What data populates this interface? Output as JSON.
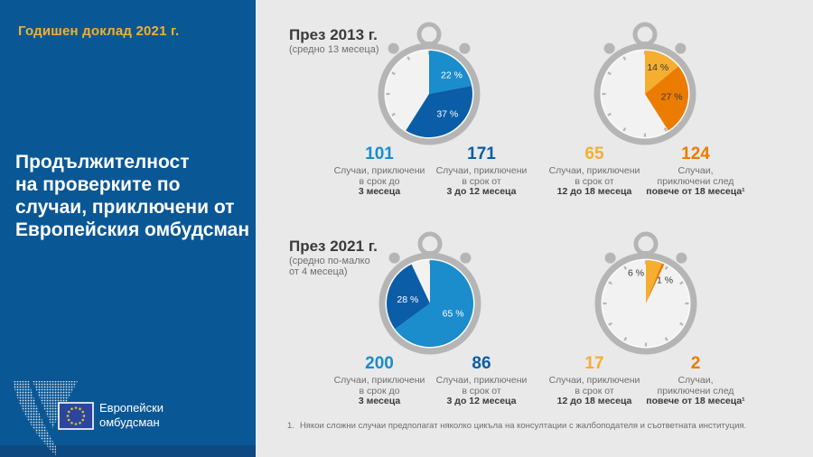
{
  "colors": {
    "sidebar_bg": "#0a5796",
    "sidebar_strip": "#0e4a81",
    "accent_yellow": "#f2b02e",
    "content_bg": "#e9e9e9",
    "light_blue": "#1b8ccc",
    "dark_blue": "#0b5da7",
    "amber": "#f5ae30",
    "dark_orange": "#ec7c00",
    "watch_gray": "#b5b5b5",
    "watch_face": "#f2f2f2",
    "watch_face_rim": "#fbfbfb",
    "text_dark": "#3a3a39",
    "text_gray": "#6e6e6d",
    "white": "#ffffff",
    "eu_blue": "#2b469e",
    "star_gold": "#e3c322"
  },
  "sidebar": {
    "report_title": "Годишен доклад 2021 г.",
    "title_lines": [
      "Продължителност",
      "на проверките по",
      "случаи, приключени от",
      "Европейския омбудсман"
    ],
    "logo_lines": [
      "Европейски",
      "омбудсман"
    ]
  },
  "chart_data": {
    "type": "pie",
    "title": "Продължителност на проверките по случаи, приключени от Европейския омбудсман",
    "unit": "%",
    "groups": [
      {
        "heading": "През 2013 г.",
        "subtitle_lines": [
          "(средно 13 месеца)"
        ],
        "watches": [
          {
            "slices": [
              {
                "percent": 22,
                "label": "22 %",
                "color": "light_blue",
                "label_color": "white",
                "label_angle": 50,
                "label_rf": 0.68,
                "count": "101",
                "count_color": "light_blue",
                "caption_lines": [
                  "Случаи, приключени",
                  "в срок до"
                ],
                "caption_bold": "3 месеца"
              },
              {
                "percent": 37,
                "label": "37 %",
                "color": "dark_blue",
                "label_color": "white",
                "label_angle": 137,
                "label_rf": 0.62,
                "count": "171",
                "count_color": "dark_blue",
                "caption_lines": [
                  "Случаи, приключени",
                  "в срок от"
                ],
                "caption_bold": "3 до 12 месеца"
              }
            ]
          },
          {
            "slices": [
              {
                "percent": 14,
                "label": "14 %",
                "color": "amber",
                "label_color": "text_dark",
                "label_angle": 26,
                "label_rf": 0.68,
                "count": "65",
                "count_color": "amber",
                "caption_lines": [
                  "Случаи, приключени",
                  "в срок от"
                ],
                "caption_bold": "12 до 18 месеца"
              },
              {
                "percent": 27,
                "label": "27 %",
                "color": "dark_orange",
                "label_color": "text_dark",
                "label_angle": 96,
                "label_rf": 0.62,
                "count": "124",
                "count_color": "dark_orange",
                "caption_lines": [
                  "Случаи,",
                  "приключени след"
                ],
                "caption_bold": "повече от 18 месеца¹"
              }
            ]
          }
        ]
      },
      {
        "heading": "През 2021 г.",
        "subtitle_lines": [
          "(средно по-малко",
          "от 4 месеца)"
        ],
        "watches": [
          {
            "slices": [
              {
                "percent": 65,
                "label": "65 %",
                "color": "light_blue",
                "label_color": "white",
                "label_angle": 113,
                "label_rf": 0.58,
                "count": "200",
                "count_color": "light_blue",
                "caption_lines": [
                  "Случаи, приключени",
                  "в срок до"
                ],
                "caption_bold": "3 месеца"
              },
              {
                "percent": 28,
                "label": "28 %",
                "color": "dark_blue",
                "label_color": "white",
                "label_angle": 280,
                "label_rf": 0.52,
                "count": "86",
                "count_color": "dark_blue",
                "caption_lines": [
                  "Случаи, приключени",
                  "в срок от"
                ],
                "caption_bold": "3 до 12 месеца"
              }
            ]
          },
          {
            "slices": [
              {
                "percent": 6,
                "label": "6 %",
                "color": "amber",
                "label_color": "text_dark",
                "label_angle": 342,
                "label_rf": 0.74,
                "count": "17",
                "count_color": "amber",
                "caption_lines": [
                  "Случаи, приключени",
                  "в срок от"
                ],
                "caption_bold": "12 до 18 месеца"
              },
              {
                "percent": 1,
                "label": "1 %",
                "color": "dark_orange",
                "label_color": "text_dark",
                "label_angle": 39,
                "label_rf": 0.7,
                "count": "2",
                "count_color": "dark_orange",
                "caption_lines": [
                  "Случаи,",
                  "приключени след"
                ],
                "caption_bold": "повече от 18 месеца¹"
              }
            ]
          }
        ]
      }
    ]
  },
  "footnote": {
    "marker": "1.",
    "text": "Някои сложни случаи предполагат няколко цикъла на консултации с жалбоподателя и съответната институция."
  }
}
